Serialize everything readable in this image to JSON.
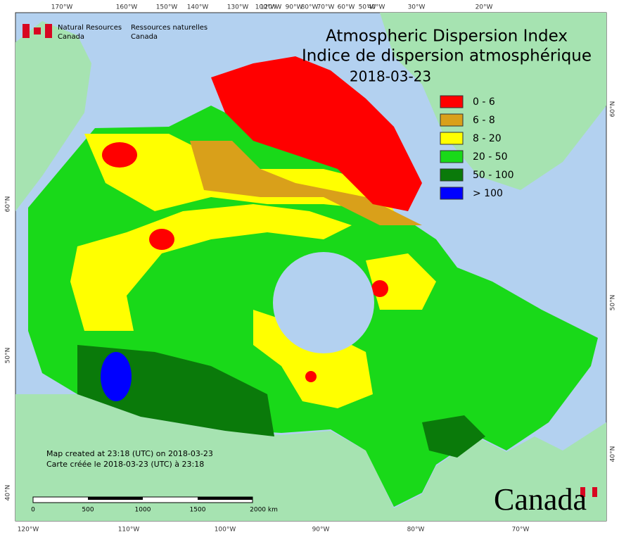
{
  "header": {
    "org_en": [
      "Natural Resources",
      "Canada"
    ],
    "org_fr": [
      "Ressources naturelles",
      "Canada"
    ]
  },
  "title": [
    "Atmospheric Dispersion Index",
    "Indice de dispersion atmosphérique"
  ],
  "date": "2018-03-23",
  "legend": [
    {
      "label": "0 - 6",
      "color": "#ff0000"
    },
    {
      "label": "6 - 8",
      "color": "#d9a01a"
    },
    {
      "label": "8 - 20",
      "color": "#ffff00"
    },
    {
      "label": "20 - 50",
      "color": "#19d919"
    },
    {
      "label": "50 - 100",
      "color": "#0a7a0a"
    },
    {
      "label": "> 100",
      "color": "#0000ff"
    }
  ],
  "top_lon_labels": [
    "170°W",
    "160°W",
    "150°W",
    "140°W",
    "130°W",
    "120°W",
    "100°W",
    "90°W",
    "80°W",
    "70°W",
    "60°W",
    "50°W",
    "40°W",
    "30°W",
    "20°W"
  ],
  "bottom_lon_labels": [
    "120°W",
    "110°W",
    "100°W",
    "90°W",
    "80°W",
    "70°W"
  ],
  "left_lat_labels": [
    "60°N",
    "50°N",
    "40°N"
  ],
  "right_lat_labels": [
    "60°N",
    "50°N",
    "40°N"
  ],
  "notes": [
    "Map created at 23:18 (UTC) on 2018-03-23",
    "Carte créée le 2018-03-23 (UTC) à 23:18"
  ],
  "scale_labels": [
    "0",
    "500",
    "1000",
    "1500",
    "2000 km"
  ],
  "wordmark": "Canada"
}
